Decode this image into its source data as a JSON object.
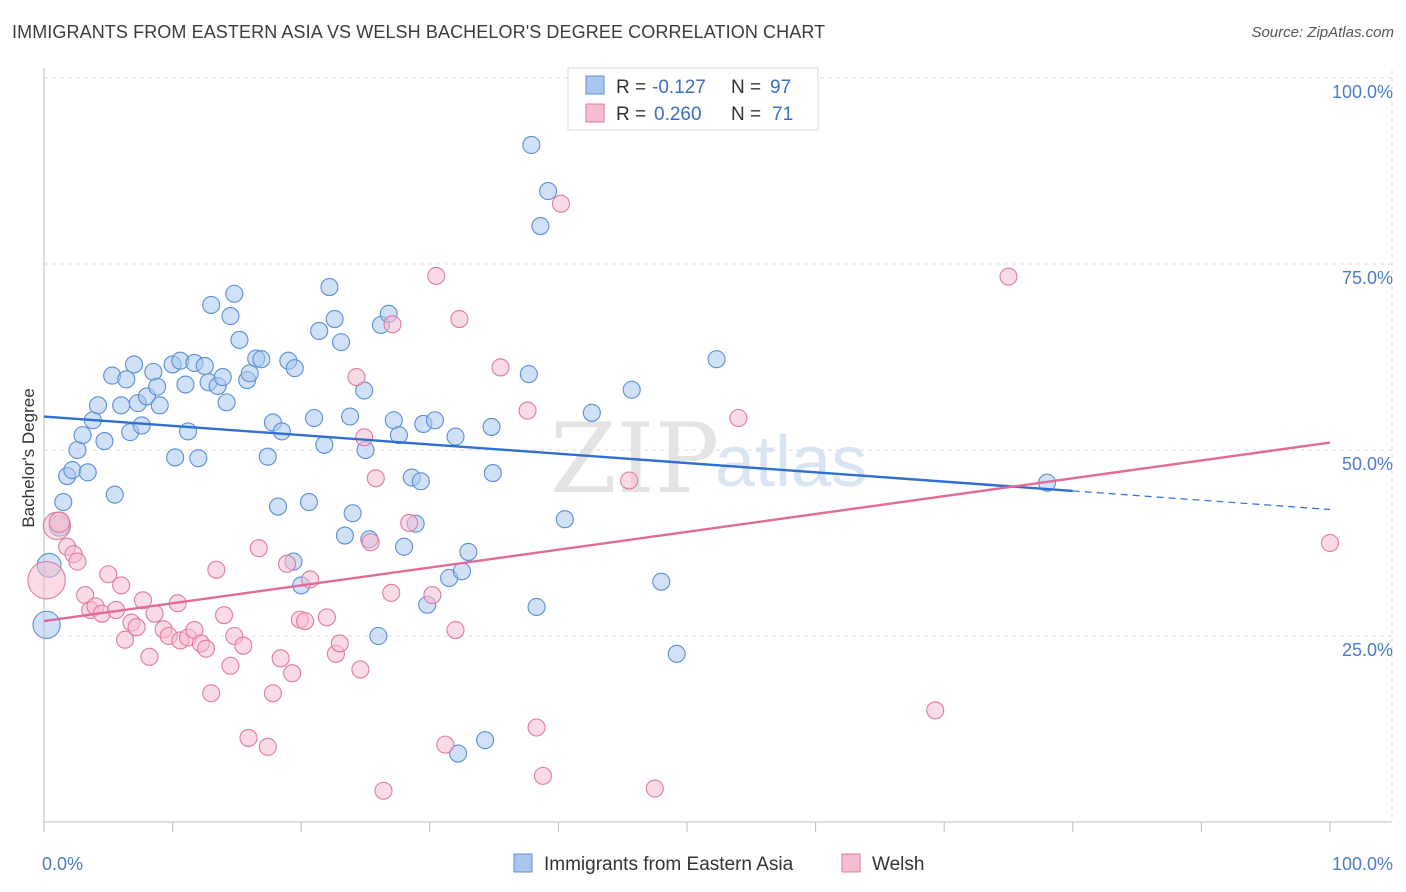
{
  "header": {
    "title": "IMMIGRANTS FROM EASTERN ASIA VS WELSH BACHELOR'S DEGREE CORRELATION CHART",
    "source": "Source: ZipAtlas.com"
  },
  "watermark": {
    "zip": "ZIP",
    "atlas": "atlas"
  },
  "legend": {
    "r_label": "R =",
    "n_label": "N =",
    "rows": [
      {
        "r": "-0.127",
        "n": "97",
        "color": "#a9c6ee",
        "stroke": "#5a8fd6"
      },
      {
        "r": "0.260",
        "n": "71",
        "color": "#f6bcd0",
        "stroke": "#e07aa0"
      }
    ]
  },
  "bottom_legend": [
    {
      "label": "Immigrants from Eastern Asia",
      "color": "#a9c6ee",
      "stroke": "#5a8fd6"
    },
    {
      "label": "Welsh",
      "color": "#f6bcd0",
      "stroke": "#e07aa0"
    }
  ],
  "chart_data": {
    "type": "scatter",
    "title": "IMMIGRANTS FROM EASTERN ASIA VS WELSH BACHELOR'S DEGREE CORRELATION CHART",
    "xlabel": "",
    "ylabel": "Bachelor's Degree",
    "xlim": [
      0,
      100
    ],
    "ylim": [
      0,
      100
    ],
    "x_tick_labels": [
      "0.0%",
      "100.0%"
    ],
    "y_ticks": [
      25,
      50,
      75,
      100
    ],
    "y_tick_labels": [
      "25.0%",
      "50.0%",
      "75.0%",
      "100.0%"
    ],
    "grid": true,
    "legend_position": "top-center",
    "series": [
      {
        "name": "Immigrants from Eastern Asia",
        "color": "#5a8fd6",
        "fill": "#a9c6ee",
        "trend": {
          "x0": 0,
          "y0": 54.5,
          "x1": 80,
          "y1": 44.5,
          "dash_x1": 100,
          "dash_y1": 42
        },
        "points": [
          [
            0.2,
            26.5,
            1.6
          ],
          [
            0.4,
            34.5,
            1.4
          ],
          [
            1.2,
            39.8,
            1.2
          ],
          [
            1.5,
            43,
            1
          ],
          [
            1.8,
            46.5,
            1
          ],
          [
            2.2,
            47.3,
            1
          ],
          [
            2.6,
            50,
            1
          ],
          [
            3,
            52,
            1
          ],
          [
            3.4,
            47,
            1
          ],
          [
            3.8,
            54,
            1
          ],
          [
            4.2,
            56,
            1
          ],
          [
            4.7,
            51.2,
            1
          ],
          [
            5.5,
            44,
            1
          ],
          [
            5.3,
            60,
            1
          ],
          [
            6,
            56,
            1
          ],
          [
            6.4,
            59.5,
            1
          ],
          [
            6.7,
            52.4,
            1
          ],
          [
            7,
            61.5,
            1
          ],
          [
            7.3,
            56.3,
            1
          ],
          [
            7.6,
            53.3,
            1
          ],
          [
            8,
            57.2,
            1
          ],
          [
            8.5,
            60.5,
            1
          ],
          [
            8.8,
            58.5,
            1
          ],
          [
            9,
            56,
            1
          ],
          [
            10,
            61.5,
            1
          ],
          [
            10.2,
            49,
            1
          ],
          [
            10.6,
            62,
            1
          ],
          [
            11,
            58.8,
            1
          ],
          [
            11.2,
            52.5,
            1
          ],
          [
            11.7,
            61.7,
            1
          ],
          [
            12,
            48.9,
            1
          ],
          [
            12.5,
            61.3,
            1
          ],
          [
            12.8,
            59.1,
            1
          ],
          [
            13,
            69.5,
            1
          ],
          [
            13.5,
            58.6,
            1
          ],
          [
            13.9,
            59.8,
            1
          ],
          [
            14.2,
            56.4,
            1
          ],
          [
            14.5,
            68,
            1
          ],
          [
            14.8,
            71,
            1
          ],
          [
            15.2,
            64.8,
            1
          ],
          [
            15.8,
            59.4,
            1
          ],
          [
            16,
            60.3,
            1
          ],
          [
            16.5,
            62.3,
            1
          ],
          [
            16.9,
            62.2,
            1
          ],
          [
            17.4,
            49.1,
            1
          ],
          [
            17.8,
            53.7,
            1
          ],
          [
            18.2,
            42.4,
            1
          ],
          [
            18.5,
            52.5,
            1
          ],
          [
            19,
            62,
            1
          ],
          [
            19.5,
            61,
            1
          ],
          [
            19.4,
            35,
            1
          ],
          [
            20,
            31.8,
            1
          ],
          [
            20.6,
            43,
            1
          ],
          [
            21,
            54.3,
            1
          ],
          [
            21.4,
            66,
            1
          ],
          [
            21.8,
            50.7,
            1
          ],
          [
            22.2,
            71.9,
            1
          ],
          [
            22.6,
            67.6,
            1
          ],
          [
            23.1,
            64.5,
            1
          ],
          [
            23.4,
            38.5,
            1
          ],
          [
            23.8,
            54.5,
            1
          ],
          [
            24,
            41.5,
            1
          ],
          [
            24.9,
            58,
            1
          ],
          [
            25,
            50,
            1
          ],
          [
            25.3,
            38,
            1
          ],
          [
            26,
            25,
            1
          ],
          [
            26.2,
            66.8,
            1
          ],
          [
            26.8,
            68.3,
            1
          ],
          [
            27.2,
            54,
            1
          ],
          [
            27.6,
            52,
            1
          ],
          [
            28,
            37,
            1
          ],
          [
            28.6,
            46.3,
            1
          ],
          [
            28.9,
            40.1,
            1
          ],
          [
            29.3,
            45.8,
            1
          ],
          [
            29.5,
            53.5,
            1
          ],
          [
            29.8,
            29.2,
            1
          ],
          [
            30.4,
            54,
            1
          ],
          [
            31.5,
            32.8,
            1
          ],
          [
            32,
            51.8,
            1
          ],
          [
            32.5,
            33.7,
            1
          ],
          [
            33,
            36.3,
            1
          ],
          [
            32.2,
            9.2,
            1
          ],
          [
            34.3,
            11,
            1
          ],
          [
            34.8,
            53.1,
            1
          ],
          [
            34.9,
            46.9,
            1
          ],
          [
            37.7,
            60.2,
            1
          ],
          [
            37.9,
            91,
            1
          ],
          [
            38.3,
            28.9,
            1
          ],
          [
            38.6,
            80.1,
            1
          ],
          [
            39.2,
            84.8,
            1
          ],
          [
            40.5,
            40.7,
            1
          ],
          [
            42.6,
            55,
            1
          ],
          [
            45.7,
            58.1,
            1
          ],
          [
            48,
            32.3,
            1
          ],
          [
            49.2,
            22.6,
            1
          ],
          [
            52.3,
            62.2,
            1
          ],
          [
            78,
            45.6,
            1
          ]
        ]
      },
      {
        "name": "Welsh",
        "color": "#e07aa0",
        "fill": "#f6bcd0",
        "trend": {
          "x0": 0,
          "y0": 27,
          "x1": 100,
          "y1": 51
        },
        "points": [
          [
            0.2,
            32.5,
            2.2
          ],
          [
            1,
            39.8,
            1.6
          ],
          [
            1.2,
            40.3,
            1.2
          ],
          [
            1.8,
            37,
            1
          ],
          [
            2.3,
            36,
            1
          ],
          [
            2.6,
            35,
            1
          ],
          [
            3.2,
            30.5,
            1
          ],
          [
            3.6,
            28.5,
            1
          ],
          [
            4,
            29,
            1
          ],
          [
            4.5,
            28,
            1
          ],
          [
            5,
            33.3,
            1
          ],
          [
            5.6,
            28.5,
            1
          ],
          [
            6,
            31.8,
            1
          ],
          [
            6.3,
            24.5,
            1
          ],
          [
            6.8,
            26.8,
            1
          ],
          [
            7.2,
            26.2,
            1
          ],
          [
            7.7,
            29.8,
            1
          ],
          [
            8.2,
            22.2,
            1
          ],
          [
            8.6,
            28,
            1
          ],
          [
            9.3,
            25.9,
            1
          ],
          [
            9.7,
            25,
            1
          ],
          [
            10.4,
            29.4,
            1
          ],
          [
            10.6,
            24.4,
            1
          ],
          [
            11.2,
            24.8,
            1
          ],
          [
            11.7,
            25.8,
            1
          ],
          [
            12.2,
            24,
            1
          ],
          [
            12.6,
            23.3,
            1
          ],
          [
            13,
            17.3,
            1
          ],
          [
            13.4,
            33.9,
            1
          ],
          [
            14,
            27.8,
            1
          ],
          [
            14.5,
            21,
            1
          ],
          [
            14.8,
            25,
            1
          ],
          [
            15.5,
            23.7,
            1
          ],
          [
            15.9,
            11.3,
            1
          ],
          [
            16.7,
            36.8,
            1
          ],
          [
            17.4,
            10.1,
            1
          ],
          [
            17.8,
            17.3,
            1
          ],
          [
            18.4,
            22,
            1
          ],
          [
            18.9,
            34.7,
            1
          ],
          [
            19.3,
            20,
            1
          ],
          [
            19.9,
            27.2,
            1
          ],
          [
            20.3,
            27,
            1
          ],
          [
            20.7,
            32.6,
            1
          ],
          [
            22,
            27.5,
            1
          ],
          [
            22.7,
            22.6,
            1
          ],
          [
            23,
            24,
            1
          ],
          [
            24.3,
            59.8,
            1
          ],
          [
            24.6,
            20.5,
            1
          ],
          [
            24.9,
            51.7,
            1
          ],
          [
            25.4,
            37.6,
            1
          ],
          [
            25.8,
            46.2,
            1
          ],
          [
            26.4,
            4.2,
            1
          ],
          [
            27,
            30.8,
            1
          ],
          [
            27.1,
            66.9,
            1
          ],
          [
            28.4,
            40.2,
            1
          ],
          [
            30.2,
            30.5,
            1
          ],
          [
            30.5,
            73.4,
            1
          ],
          [
            31.2,
            10.4,
            1
          ],
          [
            32,
            25.8,
            1
          ],
          [
            32.3,
            67.6,
            1
          ],
          [
            35.5,
            61.1,
            1
          ],
          [
            37.6,
            55.3,
            1
          ],
          [
            38.3,
            12.7,
            1
          ],
          [
            38.8,
            6.2,
            1
          ],
          [
            40.2,
            83.1,
            1
          ],
          [
            45.5,
            45.9,
            1
          ],
          [
            47.5,
            4.5,
            1
          ],
          [
            54,
            54.3,
            1
          ],
          [
            69.3,
            15,
            1
          ],
          [
            75,
            73.3,
            1
          ],
          [
            100,
            37.5,
            1
          ]
        ]
      }
    ]
  }
}
